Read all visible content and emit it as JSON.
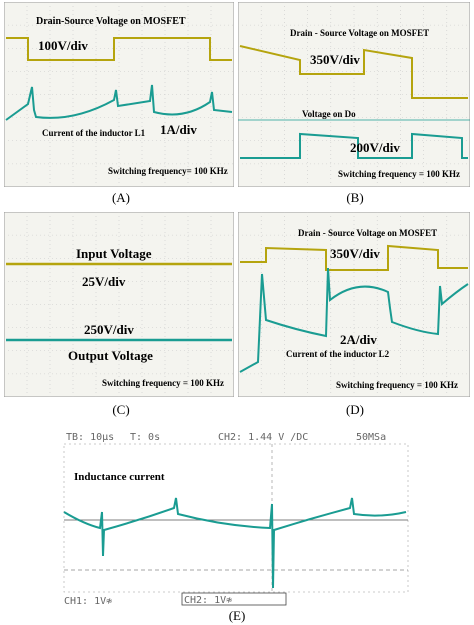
{
  "panels": {
    "A": {
      "caption": "(A)",
      "labels": {
        "title": "Drain-Source Voltage on MOSFET",
        "v_scale": "100V/div",
        "current_label": "Current of the inductor L1",
        "i_scale": "1A/div",
        "freq": "Switching frequency= 100 KHz"
      }
    },
    "B": {
      "caption": "(B)",
      "labels": {
        "title": "Drain - Source Voltage on MOSFET",
        "v_scale": "350V/div",
        "do_label": "Voltage on Do",
        "do_scale": "200V/div",
        "freq": "Switching frequency = 100 KHz"
      }
    },
    "C": {
      "caption": "(C)",
      "labels": {
        "input": "Input Voltage",
        "in_scale": "25V/div",
        "out_scale": "250V/div",
        "output": "Output Voltage",
        "freq": "Switching frequency = 100 KHz"
      }
    },
    "D": {
      "caption": "(D)",
      "labels": {
        "title": "Drain - Source Voltage on MOSFET",
        "v_scale": "350V/div",
        "i_scale": "2A/div",
        "current_label": "Current of the inductor L2",
        "freq": "Switching frequency = 100 KHz"
      }
    },
    "E": {
      "caption": "(E)",
      "header": {
        "tb": "TB: 10µs",
        "t": "T: 0s",
        "ch2": "CH2: 1.44 V /DC",
        "rate": "50MSa"
      },
      "label": "Inductance current",
      "footer": {
        "ch1": "CH1: 1V≉",
        "ch2": "CH2: 1V≉"
      }
    }
  },
  "chart_data": [
    {
      "type": "line",
      "panel": "A",
      "xlabel": "",
      "ylabel": "",
      "series": [
        {
          "name": "Drain-Source Voltage on MOSFET",
          "shape": "square",
          "color": "#b5a40e"
        },
        {
          "name": "Current of the inductor L1",
          "shape": "triangle-with-spikes",
          "color": "#1a9c92"
        }
      ]
    },
    {
      "type": "line",
      "panel": "B",
      "series": [
        {
          "name": "Drain - Source Voltage on MOSFET",
          "shape": "square",
          "color": "#b5a40e"
        },
        {
          "name": "Voltage on Do",
          "shape": "square",
          "color": "#1a9c92"
        }
      ]
    },
    {
      "type": "line",
      "panel": "C",
      "series": [
        {
          "name": "Input Voltage",
          "shape": "dc",
          "color": "#b5a40e"
        },
        {
          "name": "Output Voltage",
          "shape": "dc",
          "color": "#1a9c92"
        }
      ]
    },
    {
      "type": "line",
      "panel": "D",
      "series": [
        {
          "name": "Drain - Source Voltage on MOSFET",
          "shape": "square",
          "color": "#b5a40e"
        },
        {
          "name": "Current of the inductor L2",
          "shape": "sawtooth-with-spikes",
          "color": "#1a9c92"
        }
      ]
    },
    {
      "type": "line",
      "panel": "E",
      "series": [
        {
          "name": "Inductance current",
          "shape": "triangle-with-spikes",
          "color": "#1a9c92"
        }
      ]
    }
  ],
  "colors": {
    "yellow": "#b5a40e",
    "teal": "#1a9c92",
    "grid": "#c8c8c8",
    "bg": "#f4f4ef"
  }
}
